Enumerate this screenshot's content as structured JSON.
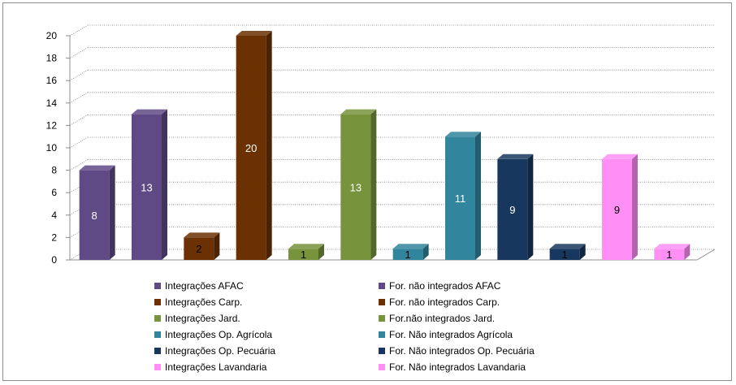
{
  "chart_data": {
    "type": "bar",
    "title": "",
    "xlabel": "",
    "ylabel": "",
    "ylim": [
      0,
      20
    ],
    "yticks": [
      0,
      2,
      4,
      6,
      8,
      10,
      12,
      14,
      16,
      18,
      20
    ],
    "grid": true,
    "legend_position": "bottom",
    "series": [
      {
        "name": "Integrações AFAC",
        "value": 8,
        "color": "#5f4a86"
      },
      {
        "name": "For. não integrados AFAC",
        "value": 13,
        "color": "#5f4a86"
      },
      {
        "name": "Integrações Carp.",
        "value": 2,
        "color": "#6b3103"
      },
      {
        "name": "For. não integrados Carp.",
        "value": 20,
        "color": "#6b3103"
      },
      {
        "name": "Integrações Jard.",
        "value": 1,
        "color": "#77933c"
      },
      {
        "name": "For.não integrados Jard.",
        "value": 13,
        "color": "#77933c"
      },
      {
        "name": "Integrações Op. Agrícola",
        "value": 1,
        "color": "#31859c"
      },
      {
        "name": "For. Não integrados Agrícola",
        "value": 11,
        "color": "#31859c"
      },
      {
        "name": "Integrações Op. Pecuária",
        "value": 9,
        "color": "#17375e"
      },
      {
        "name": "For. Não integrados Op. Pecuária",
        "value": 1,
        "color": "#17375e"
      },
      {
        "name": "Integrações Lavandaria",
        "value": 9,
        "color": "#ff8ff5"
      },
      {
        "name": "For. Não integrados Lavandaria",
        "value": 1,
        "color": "#ff8ff5"
      }
    ]
  }
}
